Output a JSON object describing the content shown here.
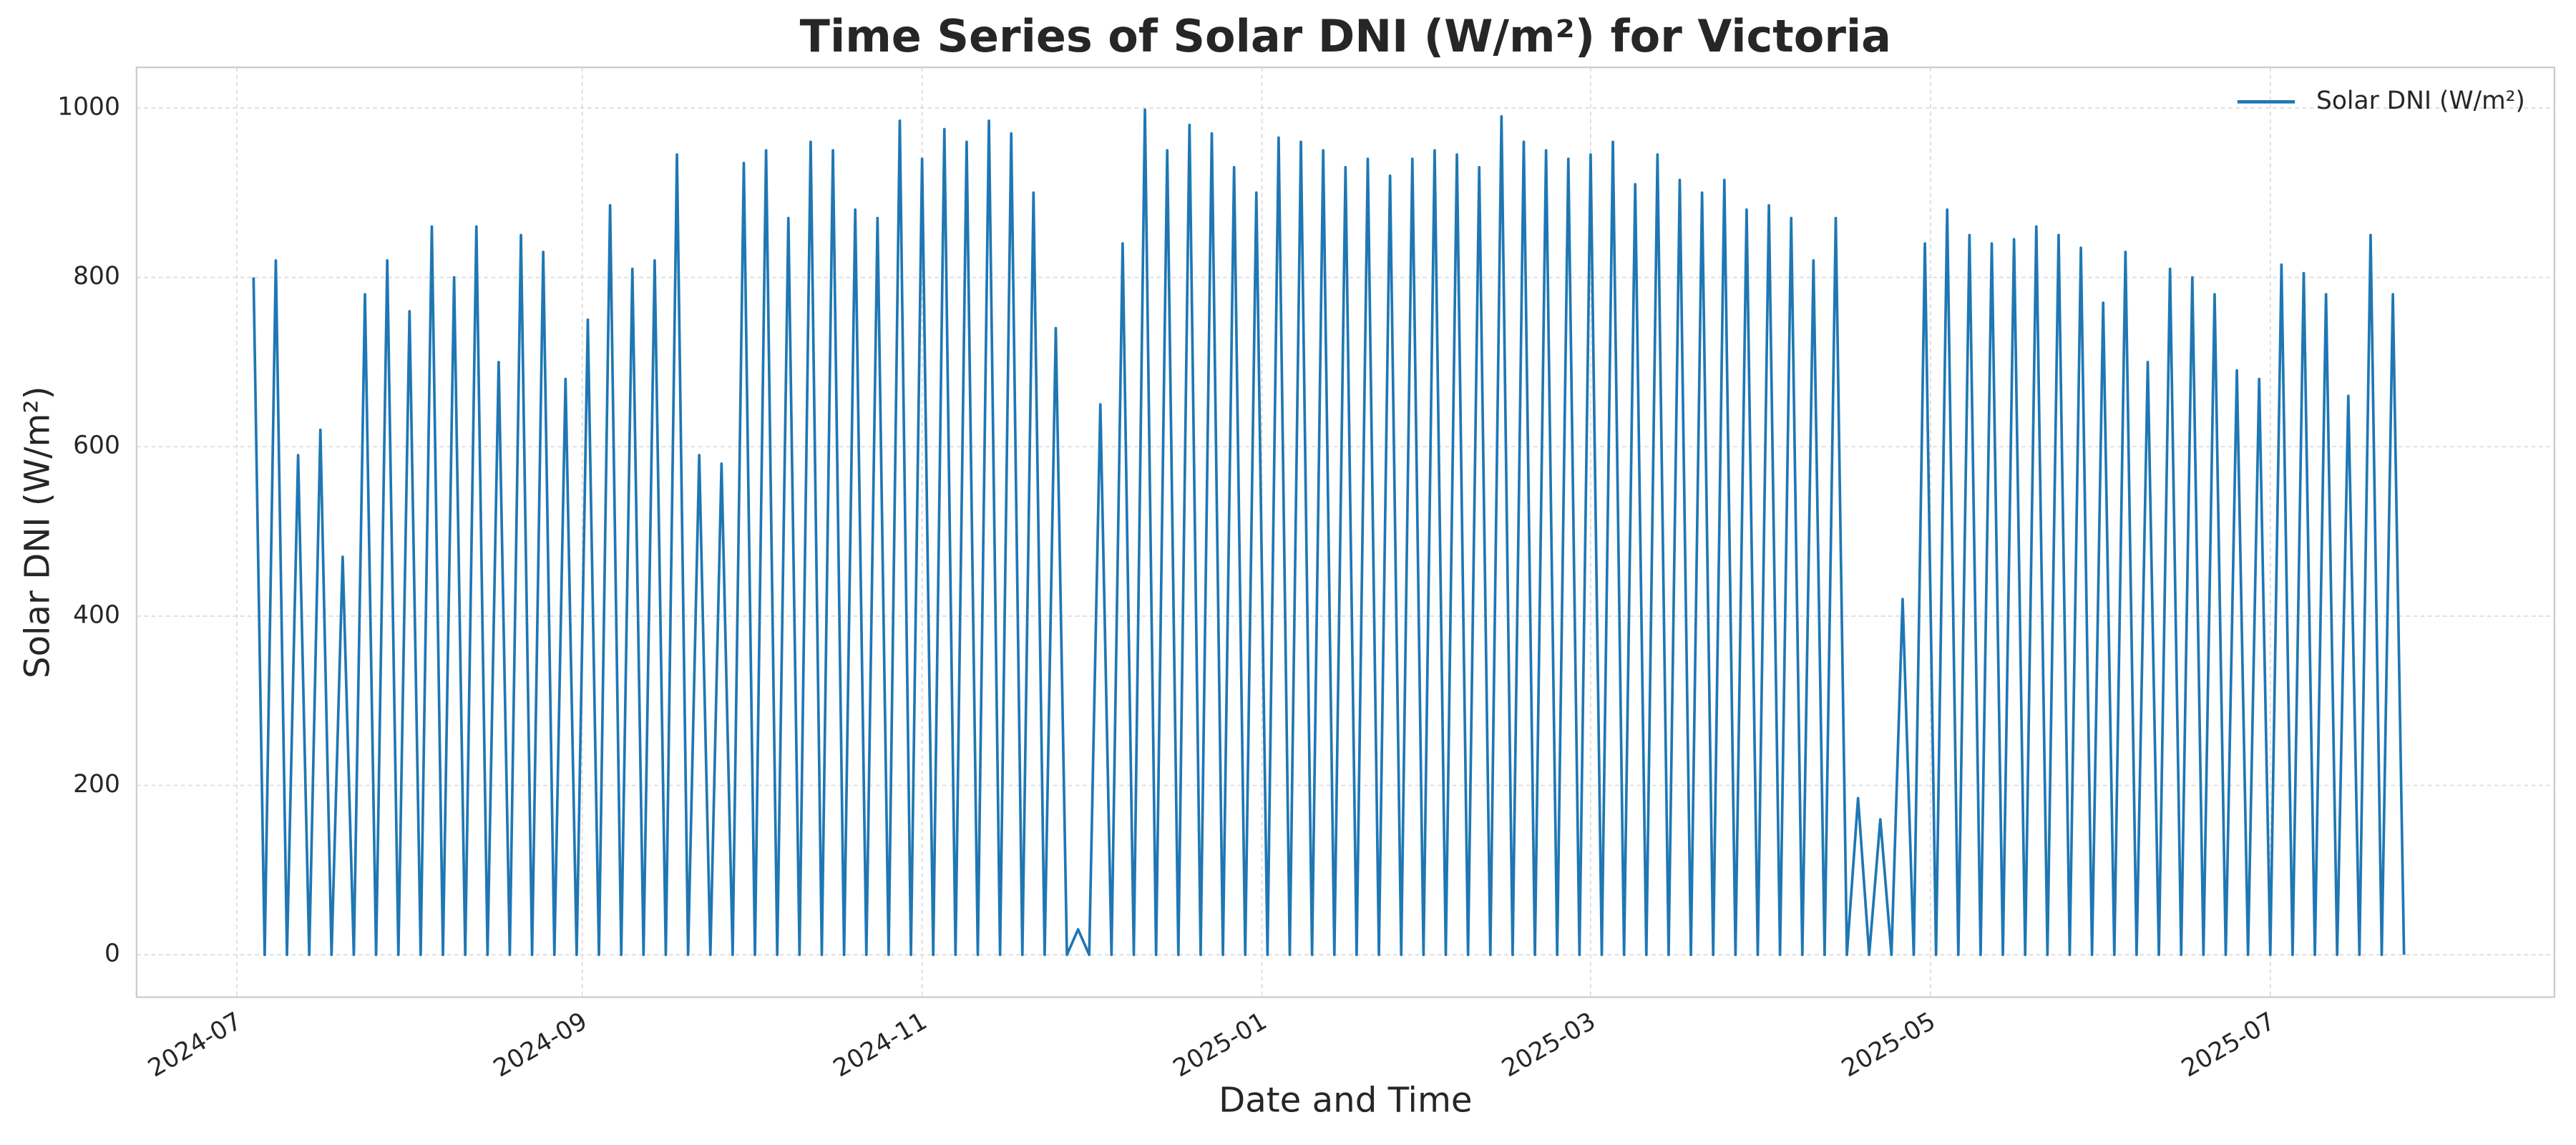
{
  "chart_data": {
    "type": "line",
    "title": "Time Series of Solar DNI (W/m²) for Victoria",
    "x_label": "Date and Time",
    "y_label": "Solar DNI (W/m²)",
    "x": [
      "2024-07-04",
      "2024-07-06",
      "2024-07-08",
      "2024-07-10",
      "2024-07-12",
      "2024-07-14",
      "2024-07-16",
      "2024-07-18",
      "2024-07-20",
      "2024-07-22",
      "2024-07-24",
      "2024-07-26",
      "2024-07-28",
      "2024-07-30",
      "2024-08-01",
      "2024-08-03",
      "2024-08-05",
      "2024-08-07",
      "2024-08-09",
      "2024-08-11",
      "2024-08-13",
      "2024-08-15",
      "2024-08-17",
      "2024-08-19",
      "2024-08-21",
      "2024-08-23",
      "2024-08-25",
      "2024-08-27",
      "2024-08-29",
      "2024-08-31",
      "2024-09-02",
      "2024-09-04",
      "2024-09-06",
      "2024-09-08",
      "2024-09-10",
      "2024-09-12",
      "2024-09-14",
      "2024-09-16",
      "2024-09-18",
      "2024-09-20",
      "2024-09-22",
      "2024-09-24",
      "2024-09-26",
      "2024-09-28",
      "2024-09-30",
      "2024-10-02",
      "2024-10-04",
      "2024-10-06",
      "2024-10-08",
      "2024-10-10",
      "2024-10-12",
      "2024-10-14",
      "2024-10-16",
      "2024-10-18",
      "2024-10-20",
      "2024-10-22",
      "2024-10-24",
      "2024-10-26",
      "2024-10-28",
      "2024-10-30",
      "2024-11-01",
      "2024-11-03",
      "2024-11-05",
      "2024-11-07",
      "2024-11-09",
      "2024-11-11",
      "2024-11-13",
      "2024-11-15",
      "2024-11-17",
      "2024-11-19",
      "2024-11-21",
      "2024-11-23",
      "2024-11-25",
      "2024-11-27",
      "2024-11-29",
      "2024-12-01",
      "2024-12-03",
      "2024-12-05",
      "2024-12-07",
      "2024-12-09",
      "2024-12-11",
      "2024-12-13",
      "2024-12-15",
      "2024-12-17",
      "2024-12-19",
      "2024-12-21",
      "2024-12-23",
      "2024-12-25",
      "2024-12-27",
      "2024-12-29",
      "2024-12-31",
      "2025-01-02",
      "2025-01-04",
      "2025-01-06",
      "2025-01-08",
      "2025-01-10",
      "2025-01-12",
      "2025-01-14",
      "2025-01-16",
      "2025-01-18",
      "2025-01-20",
      "2025-01-22",
      "2025-01-24",
      "2025-01-26",
      "2025-01-28",
      "2025-01-30",
      "2025-02-01",
      "2025-02-03",
      "2025-02-05",
      "2025-02-07",
      "2025-02-09",
      "2025-02-11",
      "2025-02-13",
      "2025-02-15",
      "2025-02-17",
      "2025-02-19",
      "2025-02-21",
      "2025-02-23",
      "2025-02-25",
      "2025-02-27",
      "2025-03-01",
      "2025-03-03",
      "2025-03-05",
      "2025-03-07",
      "2025-03-09",
      "2025-03-11",
      "2025-03-13",
      "2025-03-15",
      "2025-03-17",
      "2025-03-19",
      "2025-03-21",
      "2025-03-23",
      "2025-03-25",
      "2025-03-27",
      "2025-03-29",
      "2025-03-31",
      "2025-04-02",
      "2025-04-04",
      "2025-04-06",
      "2025-04-08",
      "2025-04-10",
      "2025-04-12",
      "2025-04-14",
      "2025-04-16",
      "2025-04-18",
      "2025-04-20",
      "2025-04-22",
      "2025-04-24",
      "2025-04-26",
      "2025-04-28",
      "2025-04-30",
      "2025-05-02",
      "2025-05-04",
      "2025-05-06",
      "2025-05-08",
      "2025-05-10",
      "2025-05-12",
      "2025-05-14",
      "2025-05-16",
      "2025-05-18",
      "2025-05-20",
      "2025-05-22",
      "2025-05-24",
      "2025-05-26",
      "2025-05-28",
      "2025-05-30",
      "2025-06-01",
      "2025-06-03",
      "2025-06-05",
      "2025-06-07",
      "2025-06-09",
      "2025-06-11",
      "2025-06-13",
      "2025-06-15",
      "2025-06-17",
      "2025-06-19",
      "2025-06-21",
      "2025-06-23",
      "2025-06-25",
      "2025-06-27",
      "2025-06-29",
      "2025-07-01",
      "2025-07-03",
      "2025-07-05",
      "2025-07-07",
      "2025-07-09",
      "2025-07-11",
      "2025-07-13",
      "2025-07-15",
      "2025-07-17",
      "2025-07-19",
      "2025-07-21",
      "2025-07-23",
      "2025-07-25"
    ],
    "series": [
      {
        "name": "Solar DNI (W/m²)",
        "color": "#1f77b4",
        "values": [
          800,
          0,
          820,
          0,
          590,
          0,
          620,
          0,
          470,
          0,
          780,
          0,
          820,
          0,
          760,
          0,
          860,
          0,
          800,
          0,
          860,
          0,
          700,
          0,
          850,
          0,
          830,
          0,
          680,
          0,
          750,
          0,
          885,
          0,
          810,
          0,
          820,
          0,
          945,
          0,
          590,
          0,
          580,
          0,
          935,
          0,
          950,
          0,
          870,
          0,
          960,
          0,
          950,
          0,
          880,
          0,
          870,
          0,
          985,
          0,
          940,
          0,
          975,
          0,
          960,
          0,
          985,
          0,
          970,
          0,
          900,
          0,
          740,
          0,
          30,
          0,
          650,
          0,
          840,
          0,
          998,
          0,
          950,
          0,
          980,
          0,
          970,
          0,
          930,
          0,
          900,
          0,
          965,
          0,
          960,
          0,
          950,
          0,
          930,
          0,
          940,
          0,
          920,
          0,
          940,
          0,
          950,
          0,
          945,
          0,
          930,
          0,
          990,
          0,
          960,
          0,
          950,
          0,
          940,
          0,
          945,
          0,
          960,
          0,
          910,
          0,
          945,
          0,
          915,
          0,
          900,
          0,
          915,
          0,
          880,
          0,
          885,
          0,
          870,
          0,
          820,
          0,
          870,
          0,
          185,
          0,
          160,
          0,
          420,
          0,
          840,
          0,
          880,
          0,
          850,
          0,
          840,
          0,
          845,
          0,
          860,
          0,
          850,
          0,
          835,
          0,
          770,
          0,
          830,
          0,
          700,
          0,
          810,
          0,
          800,
          0,
          780,
          0,
          690,
          0,
          680,
          0,
          815,
          0,
          805,
          0,
          780,
          0,
          660,
          0,
          850,
          0,
          780,
          0
        ]
      }
    ],
    "xlim": [
      "2024-06-13",
      "2025-08-21"
    ],
    "xticks": [
      "2024-07",
      "2024-09",
      "2024-11",
      "2025-01",
      "2025-03",
      "2025-05",
      "2025-07"
    ],
    "ylim": [
      -50,
      1048
    ],
    "yticks": [
      0,
      200,
      400,
      600,
      800,
      1000
    ],
    "grid": true,
    "legend": "upper right"
  }
}
